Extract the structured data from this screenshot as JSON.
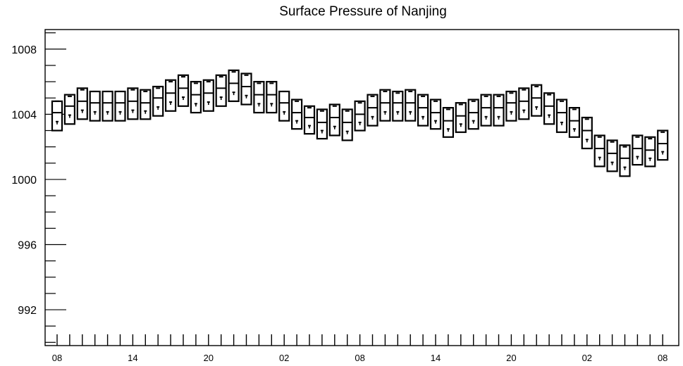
{
  "chart_data": {
    "type": "box",
    "title": "Surface Pressure of Nanjing",
    "xlabel": "",
    "ylabel": "",
    "ylim": [
      989.8,
      1009.2
    ],
    "y_ticks": [
      992,
      996,
      1000,
      1004,
      1008
    ],
    "x_tick_labels": [
      {
        "index": 0,
        "label": "08"
      },
      {
        "index": 6,
        "label": "14"
      },
      {
        "index": 12,
        "label": "20"
      },
      {
        "index": 18,
        "label": "02"
      },
      {
        "index": 24,
        "label": "08"
      },
      {
        "index": 30,
        "label": "14"
      },
      {
        "index": 36,
        "label": "20"
      },
      {
        "index": 42,
        "label": "02"
      },
      {
        "index": 48,
        "label": "08"
      }
    ],
    "series": [
      {
        "values": [
          {
            "x": 0,
            "max": 1004.8,
            "q3": 1004.8,
            "median": 1004.1,
            "q1": 1003.0,
            "min": 1003.0
          },
          {
            "x": 1,
            "max": 1005.2,
            "q3": 1005.1,
            "median": 1004.5,
            "q1": 1003.4,
            "min": 1003.4
          },
          {
            "x": 2,
            "max": 1005.6,
            "q3": 1005.5,
            "median": 1004.8,
            "q1": 1003.7,
            "min": 1003.7
          },
          {
            "x": 3,
            "max": 1005.4,
            "q3": 1005.4,
            "median": 1004.7,
            "q1": 1003.6,
            "min": 1003.6
          },
          {
            "x": 4,
            "max": 1005.4,
            "q3": 1005.4,
            "median": 1004.7,
            "q1": 1003.6,
            "min": 1003.6
          },
          {
            "x": 5,
            "max": 1005.4,
            "q3": 1005.4,
            "median": 1004.7,
            "q1": 1003.6,
            "min": 1003.6
          },
          {
            "x": 6,
            "max": 1005.6,
            "q3": 1005.5,
            "median": 1004.8,
            "q1": 1003.7,
            "min": 1003.7
          },
          {
            "x": 7,
            "max": 1005.5,
            "q3": 1005.4,
            "median": 1004.7,
            "q1": 1003.7,
            "min": 1003.7
          },
          {
            "x": 8,
            "max": 1005.7,
            "q3": 1005.6,
            "median": 1005.0,
            "q1": 1003.9,
            "min": 1003.9
          },
          {
            "x": 9,
            "max": 1006.1,
            "q3": 1006.0,
            "median": 1005.3,
            "q1": 1004.2,
            "min": 1004.2
          },
          {
            "x": 10,
            "max": 1006.4,
            "q3": 1006.3,
            "median": 1005.6,
            "q1": 1004.5,
            "min": 1004.5
          },
          {
            "x": 11,
            "max": 1006.0,
            "q3": 1005.9,
            "median": 1005.2,
            "q1": 1004.1,
            "min": 1004.1
          },
          {
            "x": 12,
            "max": 1006.1,
            "q3": 1006.0,
            "median": 1005.3,
            "q1": 1004.2,
            "min": 1004.2
          },
          {
            "x": 13,
            "max": 1006.4,
            "q3": 1006.3,
            "median": 1005.6,
            "q1": 1004.5,
            "min": 1004.5
          },
          {
            "x": 14,
            "max": 1006.7,
            "q3": 1006.6,
            "median": 1005.9,
            "q1": 1004.8,
            "min": 1004.8
          },
          {
            "x": 15,
            "max": 1006.5,
            "q3": 1006.4,
            "median": 1005.7,
            "q1": 1004.6,
            "min": 1004.6
          },
          {
            "x": 16,
            "max": 1006.0,
            "q3": 1005.9,
            "median": 1005.2,
            "q1": 1004.1,
            "min": 1004.1
          },
          {
            "x": 17,
            "max": 1006.0,
            "q3": 1005.9,
            "median": 1005.2,
            "q1": 1004.1,
            "min": 1004.1
          },
          {
            "x": 18,
            "max": 1005.4,
            "q3": 1005.4,
            "median": 1004.7,
            "q1": 1003.6,
            "min": 1003.6
          },
          {
            "x": 19,
            "max": 1004.9,
            "q3": 1004.8,
            "median": 1004.1,
            "q1": 1003.1,
            "min": 1003.1
          },
          {
            "x": 20,
            "max": 1004.5,
            "q3": 1004.4,
            "median": 1003.8,
            "q1": 1002.8,
            "min": 1002.8
          },
          {
            "x": 21,
            "max": 1004.3,
            "q3": 1004.2,
            "median": 1003.5,
            "q1": 1002.5,
            "min": 1002.5
          },
          {
            "x": 22,
            "max": 1004.6,
            "q3": 1004.5,
            "median": 1003.8,
            "q1": 1002.7,
            "min": 1002.7
          },
          {
            "x": 23,
            "max": 1004.3,
            "q3": 1004.2,
            "median": 1003.5,
            "q1": 1002.4,
            "min": 1002.4
          },
          {
            "x": 24,
            "max": 1004.8,
            "q3": 1004.7,
            "median": 1004.0,
            "q1": 1003.0,
            "min": 1003.0
          },
          {
            "x": 25,
            "max": 1005.2,
            "q3": 1005.1,
            "median": 1004.4,
            "q1": 1003.3,
            "min": 1003.3
          },
          {
            "x": 26,
            "max": 1005.5,
            "q3": 1005.4,
            "median": 1004.7,
            "q1": 1003.6,
            "min": 1003.6
          },
          {
            "x": 27,
            "max": 1005.4,
            "q3": 1005.3,
            "median": 1004.7,
            "q1": 1003.6,
            "min": 1003.6
          },
          {
            "x": 28,
            "max": 1005.5,
            "q3": 1005.4,
            "median": 1004.7,
            "q1": 1003.6,
            "min": 1003.6
          },
          {
            "x": 29,
            "max": 1005.2,
            "q3": 1005.1,
            "median": 1004.4,
            "q1": 1003.3,
            "min": 1003.3
          },
          {
            "x": 30,
            "max": 1004.9,
            "q3": 1004.8,
            "median": 1004.1,
            "q1": 1003.1,
            "min": 1003.1
          },
          {
            "x": 31,
            "max": 1004.4,
            "q3": 1004.3,
            "median": 1003.6,
            "q1": 1002.6,
            "min": 1002.6
          },
          {
            "x": 32,
            "max": 1004.7,
            "q3": 1004.6,
            "median": 1003.9,
            "q1": 1002.9,
            "min": 1002.9
          },
          {
            "x": 33,
            "max": 1004.9,
            "q3": 1004.8,
            "median": 1004.1,
            "q1": 1003.1,
            "min": 1003.1
          },
          {
            "x": 34,
            "max": 1005.2,
            "q3": 1005.1,
            "median": 1004.4,
            "q1": 1003.3,
            "min": 1003.3
          },
          {
            "x": 35,
            "max": 1005.2,
            "q3": 1005.1,
            "median": 1004.4,
            "q1": 1003.3,
            "min": 1003.3
          },
          {
            "x": 36,
            "max": 1005.4,
            "q3": 1005.3,
            "median": 1004.7,
            "q1": 1003.6,
            "min": 1003.6
          },
          {
            "x": 37,
            "max": 1005.6,
            "q3": 1005.5,
            "median": 1004.8,
            "q1": 1003.7,
            "min": 1003.7
          },
          {
            "x": 38,
            "max": 1005.8,
            "q3": 1005.7,
            "median": 1005.0,
            "q1": 1003.9,
            "min": 1003.9
          },
          {
            "x": 39,
            "max": 1005.3,
            "q3": 1005.2,
            "median": 1004.5,
            "q1": 1003.4,
            "min": 1003.4
          },
          {
            "x": 40,
            "max": 1004.9,
            "q3": 1004.8,
            "median": 1004.1,
            "q1": 1002.9,
            "min": 1002.9
          },
          {
            "x": 41,
            "max": 1004.4,
            "q3": 1004.3,
            "median": 1003.6,
            "q1": 1002.6,
            "min": 1002.6
          },
          {
            "x": 42,
            "max": 1003.8,
            "q3": 1003.7,
            "median": 1003.0,
            "q1": 1001.9,
            "min": 1001.9
          },
          {
            "x": 43,
            "max": 1002.7,
            "q3": 1002.6,
            "median": 1001.9,
            "q1": 1000.8,
            "min": 1000.8
          },
          {
            "x": 44,
            "max": 1002.4,
            "q3": 1002.3,
            "median": 1001.6,
            "q1": 1000.5,
            "min": 1000.5
          },
          {
            "x": 45,
            "max": 1002.1,
            "q3": 1002.0,
            "median": 1001.3,
            "q1": 1000.2,
            "min": 1000.2
          },
          {
            "x": 46,
            "max": 1002.7,
            "q3": 1002.6,
            "median": 1001.9,
            "q1": 1000.9,
            "min": 1000.9
          },
          {
            "x": 47,
            "max": 1002.6,
            "q3": 1002.5,
            "median": 1001.8,
            "q1": 1000.8,
            "min": 1000.8
          },
          {
            "x": 48,
            "max": 1003.0,
            "q3": 1002.9,
            "median": 1002.2,
            "q1": 1001.2,
            "min": 1001.2
          }
        ]
      }
    ],
    "grid": false,
    "colors": {
      "line": "#000000",
      "background": "#ffffff"
    }
  }
}
